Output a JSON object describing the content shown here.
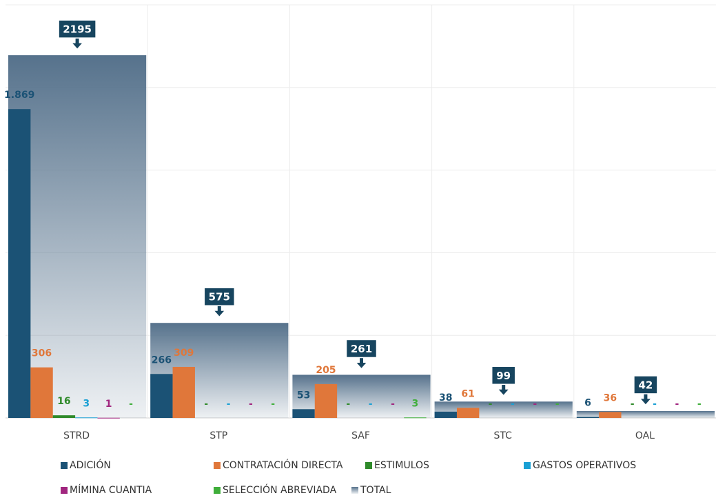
{
  "chart_data": {
    "type": "grouped-bar-with-total",
    "categories": [
      "STRD",
      "STP",
      "SAF",
      "STC",
      "OAL"
    ],
    "ylim": [
      0,
      2500
    ],
    "yticks": [
      0,
      500,
      1000,
      1500,
      2000,
      2500
    ],
    "grid": true,
    "series": [
      {
        "name": "ADICIÓN",
        "color": "#1b5275",
        "values": [
          1869,
          266,
          53,
          38,
          6
        ],
        "value_labels": [
          "1.869",
          "266",
          "53",
          "38",
          "6"
        ]
      },
      {
        "name": "CONTRATACIÓN DIRECTA",
        "color": "#e0773a",
        "values": [
          306,
          309,
          205,
          61,
          36
        ]
      },
      {
        "name": "ESTIMULOS",
        "color": "#2f8a2a",
        "values": [
          16,
          null,
          null,
          null,
          null
        ],
        "value_labels": [
          "16",
          "-",
          "-",
          "-",
          "-"
        ]
      },
      {
        "name": "GASTOS OPERATIVOS",
        "color": "#1aa0d4",
        "values": [
          3,
          null,
          null,
          null,
          null
        ],
        "value_labels": [
          "3",
          "-",
          "-",
          "-",
          "-"
        ]
      },
      {
        "name": "MÍMINA CUANTIA",
        "color": "#a1267f",
        "values": [
          1,
          null,
          null,
          null,
          null
        ],
        "value_labels": [
          "1",
          "-",
          "-",
          "-",
          "-"
        ]
      },
      {
        "name": "SELECCIÓN ABREVIADA",
        "color": "#3fae3a",
        "values": [
          null,
          null,
          3,
          null,
          null
        ],
        "value_labels": [
          "-",
          "-",
          "3",
          "-",
          "-"
        ]
      },
      {
        "name": "TOTAL",
        "color": "#56728c",
        "kind": "background",
        "values": [
          2195,
          575,
          261,
          99,
          42
        ]
      }
    ]
  }
}
